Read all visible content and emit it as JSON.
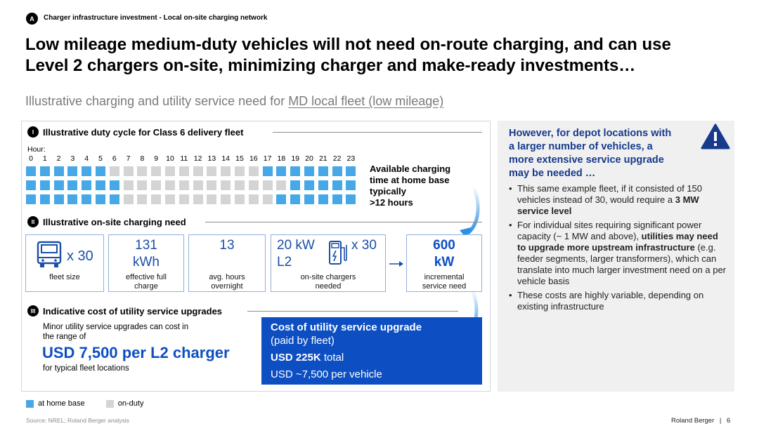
{
  "section_tag": {
    "letter": "A",
    "label": "Charger infrastructure investment - Local on-site charging network"
  },
  "title_line1": "Low mileage medium-duty vehicles will not need on-route charging, and can use",
  "title_line2": "Level 2 chargers on-site, minimizing charger and make-ready investments…",
  "subtitle": {
    "prefix": "Illustrative charging and utility service need for ",
    "underlined": "MD local fleet (low mileage)"
  },
  "section1": {
    "numeral": "I",
    "title": "Illustrative duty cycle for Class 6 delivery fleet"
  },
  "hour_label": "Hour:",
  "hours": [
    "0",
    "1",
    "2",
    "3",
    "4",
    "5",
    "6",
    "7",
    "8",
    "9",
    "10",
    "11",
    "12",
    "13",
    "14",
    "15",
    "16",
    "17",
    "18",
    "19",
    "20",
    "21",
    "22",
    "23"
  ],
  "duty_cycle_rows": [
    [
      1,
      1,
      1,
      1,
      1,
      1,
      0,
      0,
      0,
      0,
      0,
      0,
      0,
      0,
      0,
      0,
      0,
      1,
      1,
      1,
      1,
      1,
      1,
      1
    ],
    [
      1,
      1,
      1,
      1,
      1,
      1,
      1,
      0,
      0,
      0,
      0,
      0,
      0,
      0,
      0,
      0,
      0,
      0,
      0,
      1,
      1,
      1,
      1,
      1
    ],
    [
      1,
      1,
      1,
      1,
      1,
      1,
      1,
      0,
      0,
      0,
      0,
      0,
      0,
      0,
      0,
      0,
      0,
      0,
      1,
      1,
      1,
      1,
      1,
      1
    ]
  ],
  "duty_cycle_callout": [
    "Available charging",
    "time at home base",
    "typically",
    ">12 hours"
  ],
  "section2": {
    "numeral": "II",
    "title": "Illustrative on-site charging need"
  },
  "boxes": {
    "fleet_multiplier": "x 30",
    "fleet_caption": "fleet size",
    "kwh_value_1": "131",
    "kwh_value_2": "kWh",
    "kwh_caption_1": "effective full",
    "kwh_caption_2": "charge",
    "hours_value": "13",
    "hours_caption_1": "avg. hours",
    "hours_caption_2": "overnight",
    "charger_value_1": "20 kW",
    "charger_value_2": "L2",
    "charger_multiplier": "x 30",
    "charger_caption_1": "on-site chargers",
    "charger_caption_2": "needed",
    "service_value_1": "600",
    "service_value_2": "kW",
    "service_caption_1": "incremental",
    "service_caption_2": "service need"
  },
  "section3": {
    "numeral": "III",
    "title": "Indicative cost of utility service upgrades"
  },
  "cost_left": {
    "intro_1": "Minor utility service upgrades can cost in",
    "intro_2": "the range of",
    "headline": "USD 7,500 per L2 charger",
    "footnote": "for typical fleet locations"
  },
  "cost_box": {
    "title": "Cost of utility service upgrade",
    "sub": "(paid by fleet)",
    "total_bold": "USD 225K",
    "total_rest": " total",
    "per_vehicle": "USD ~7,500 per vehicle"
  },
  "right_panel": {
    "heading": [
      "However, for depot locations with",
      "a larger number of vehicles, a",
      "more extensive service upgrade",
      "may be needed …"
    ],
    "bullet1": {
      "pre": "This same example fleet, if it consisted of 150 vehicles instead of 30, would require a ",
      "bold": "3 MW service level",
      "post": ""
    },
    "bullet2": {
      "pre": "For individual sites requiring significant power capacity (~ 1 MW and above), ",
      "bold": "utilities may need to upgrade more upstream infrastructure",
      "post": " (e.g. feeder segments, larger transformers), which can translate into much larger investment need on a per vehicle basis"
    },
    "bullet3": "These costs are highly variable, depending on existing infrastructure"
  },
  "legend": {
    "home": "at home base",
    "duty": "on-duty"
  },
  "colors": {
    "home": "#47a8e8",
    "duty": "#d4d4d4",
    "accent": "#0d4fc2",
    "heading_blue": "#173a8c"
  },
  "source": "Source: NREL; Roland Berger analysis",
  "footer_brand": "Roland Berger",
  "footer_separator": "|",
  "page_number": "6"
}
